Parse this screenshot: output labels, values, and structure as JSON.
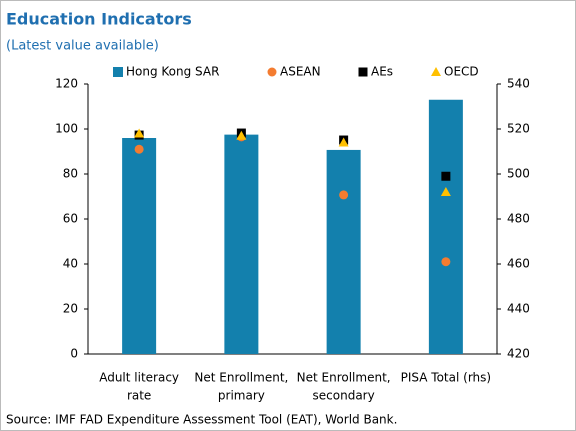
{
  "chart_data": {
    "type": "bar",
    "title": "Education Indicators",
    "subtitle": "(Latest value available)",
    "source": "Source: IMF FAD Expenditure Assessment Tool (EAT), World Bank.",
    "categories": [
      [
        "Adult literacy",
        "rate"
      ],
      [
        "Net Enrollment,",
        "primary"
      ],
      [
        "Net Enrollment,",
        "secondary"
      ],
      [
        "PISA Total (rhs)"
      ]
    ],
    "value_axis": [
      "y",
      "y",
      "y",
      "y2"
    ],
    "series": [
      {
        "name": "Hong Kong SAR",
        "color": "#1380ad",
        "marker": "bar",
        "values": [
          96,
          97.5,
          90.7,
          533
        ]
      },
      {
        "name": "ASEAN",
        "color": "#f47c30",
        "marker": "circle",
        "values": [
          91,
          96.5,
          70.7,
          461
        ]
      },
      {
        "name": "AEs",
        "color": "#000000",
        "marker": "square",
        "values": [
          97.3,
          98.2,
          95.1,
          499
        ]
      },
      {
        "name": "OECD",
        "color": "#ffc000",
        "marker": "triangle",
        "values": [
          98,
          97,
          94,
          492
        ]
      }
    ],
    "ylim": [
      0,
      120
    ],
    "yticks": [
      0,
      20,
      40,
      60,
      80,
      100,
      120
    ],
    "y2lim": [
      420,
      540
    ],
    "y2ticks": [
      420,
      440,
      460,
      480,
      500,
      520,
      540
    ],
    "grid": false
  }
}
